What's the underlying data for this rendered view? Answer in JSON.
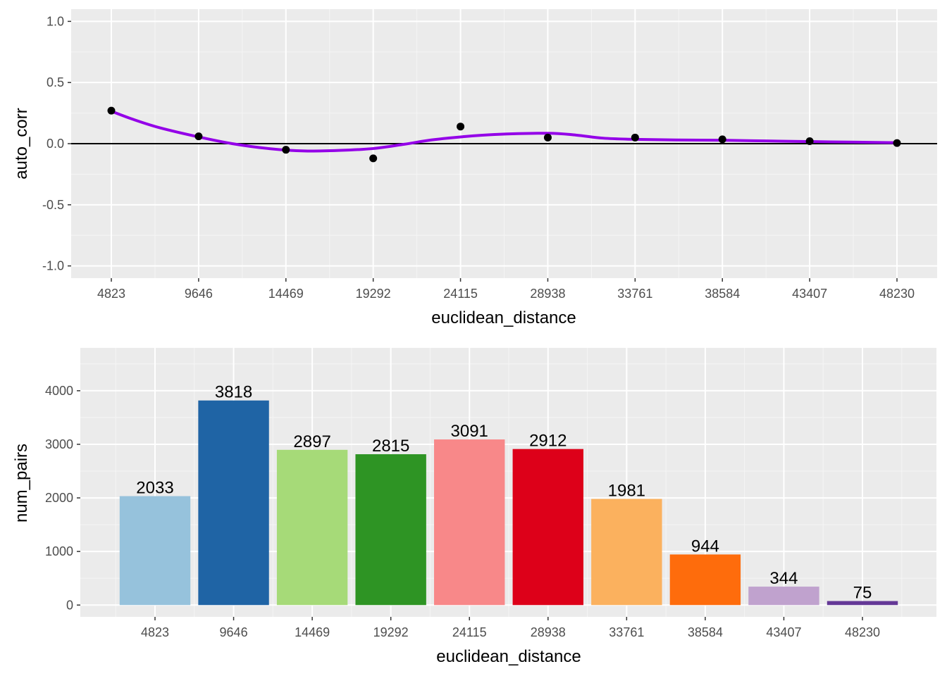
{
  "chart_data": [
    {
      "type": "scatter",
      "xlabel": "euclidean_distance",
      "ylabel": "auto_corr",
      "ylim": [
        -1.1,
        1.1
      ],
      "yticks": [
        "-1.0",
        "-0.5",
        "0.0",
        "0.5",
        "1.0"
      ],
      "ytick_values": [
        -1.0,
        -0.5,
        0.0,
        0.5,
        1.0
      ],
      "categories": [
        "4823",
        "9646",
        "14469",
        "19292",
        "24115",
        "28938",
        "33761",
        "38584",
        "43407",
        "48230"
      ],
      "x": [
        4823,
        9646,
        14469,
        19292,
        24115,
        28938,
        33761,
        38584,
        43407,
        48230
      ],
      "values": [
        0.27,
        0.06,
        -0.05,
        -0.12,
        0.14,
        0.05,
        0.05,
        0.035,
        0.02,
        0.005
      ],
      "smooth_line": {
        "color": "#9400E8",
        "x": [
          4823,
          6000,
          7500,
          9646,
          11500,
          13500,
          15500,
          17500,
          19292,
          21000,
          22500,
          24115,
          26000,
          28938,
          30500,
          32000,
          33761,
          36000,
          38584,
          41000,
          43407,
          46000,
          48230
        ],
        "y": [
          0.265,
          0.2,
          0.13,
          0.055,
          0.0,
          -0.04,
          -0.06,
          -0.055,
          -0.04,
          -0.005,
          0.03,
          0.055,
          0.075,
          0.085,
          0.07,
          0.045,
          0.035,
          0.03,
          0.028,
          0.022,
          0.017,
          0.012,
          0.008
        ]
      },
      "hline": 0,
      "point_color": "#000000",
      "grid": true
    },
    {
      "type": "bar",
      "xlabel": "euclidean_distance",
      "ylabel": "num_pairs",
      "ylim": [
        -220,
        4800
      ],
      "yticks": [
        "0",
        "1000",
        "2000",
        "3000",
        "4000"
      ],
      "ytick_values": [
        0,
        1000,
        2000,
        3000,
        4000
      ],
      "categories": [
        "4823",
        "9646",
        "14469",
        "19292",
        "24115",
        "28938",
        "33761",
        "38584",
        "43407",
        "48230"
      ],
      "values": [
        2033,
        3818,
        2897,
        2815,
        3091,
        2912,
        1981,
        944,
        344,
        75
      ],
      "value_labels": [
        "2033",
        "3818",
        "2897",
        "2815",
        "3091",
        "2912",
        "1981",
        "944",
        "344",
        "75"
      ],
      "colors": [
        "#96C2DC",
        "#1F64A5",
        "#A6DA78",
        "#2E9424",
        "#F88889",
        "#DD0019",
        "#FBB15E",
        "#FE6C0C",
        "#C0A2CE",
        "#643896"
      ],
      "grid": true
    }
  ]
}
